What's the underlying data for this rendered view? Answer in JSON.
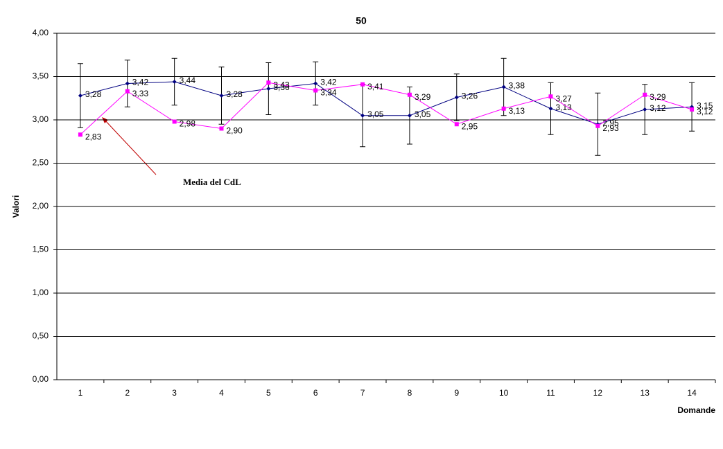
{
  "chart_data": {
    "type": "line",
    "title": "50",
    "y_label": "Valori",
    "x_label": "Domande",
    "annotation": "Media del CdL",
    "categories": [
      "1",
      "2",
      "3",
      "4",
      "5",
      "6",
      "7",
      "8",
      "9",
      "10",
      "11",
      "12",
      "13",
      "14"
    ],
    "ylim": [
      0,
      4
    ],
    "yticks": [
      {
        "value": 0,
        "label": "0,00"
      },
      {
        "value": 0.5,
        "label": "0,50"
      },
      {
        "value": 1,
        "label": "1,00"
      },
      {
        "value": 1.5,
        "label": "1,50"
      },
      {
        "value": 2,
        "label": "2,00"
      },
      {
        "value": 2.5,
        "label": "2,50"
      },
      {
        "value": 3,
        "label": "3,00"
      },
      {
        "value": 3.5,
        "label": "3,50"
      },
      {
        "value": 4,
        "label": "4,00"
      }
    ],
    "grid": true,
    "series": [
      {
        "color": "#000080",
        "marker": "diamond",
        "values": [
          3.28,
          3.42,
          3.44,
          3.28,
          3.36,
          3.42,
          3.05,
          3.05,
          3.26,
          3.38,
          3.13,
          2.95,
          3.12,
          3.15
        ],
        "value_labels": [
          "3,28",
          "3,42",
          "3,44",
          "3,28",
          "3,36",
          "3,42",
          "3,05",
          "3,05",
          "3,26",
          "3,38",
          "3,13",
          "2,95",
          "3,12",
          "3,15"
        ],
        "errors": [
          0.37,
          0.27,
          0.27,
          0.33,
          0.3,
          0.25,
          0.36,
          0.33,
          0.27,
          0.33,
          0.3,
          0.36,
          0.29,
          0.28
        ]
      },
      {
        "color": "#ff00ff",
        "marker": "square",
        "values": [
          2.83,
          3.33,
          2.98,
          2.9,
          3.43,
          3.34,
          3.41,
          3.29,
          2.95,
          3.13,
          3.27,
          2.93,
          3.29,
          3.12
        ],
        "value_labels": [
          "2,83",
          "3,33",
          "2,98",
          "2,90",
          "3,43",
          "3,34",
          "3,41",
          "3,29",
          "2,95",
          "3,13",
          "3,27",
          "2,93",
          "3,29",
          "3,12"
        ]
      }
    ]
  }
}
